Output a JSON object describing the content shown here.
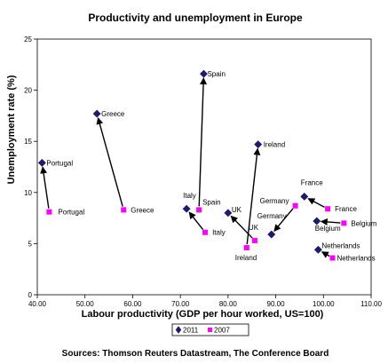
{
  "chart_data": {
    "type": "scatter",
    "title": "Productivity and unemployment in Europe",
    "xlabel": "Labour productivity (GDP per hour worked,  US=100)",
    "ylabel": "Unemployment rate (%)",
    "xlim": [
      40,
      110
    ],
    "ylim": [
      0,
      25
    ],
    "x_ticks": [
      "40.00",
      "50.00",
      "60.00",
      "70.00",
      "80.00",
      "90.00",
      "100.00",
      "110.00"
    ],
    "y_ticks": [
      "0",
      "5",
      "10",
      "15",
      "20",
      "25"
    ],
    "grid": false,
    "legend_position": "bottom",
    "source": "Sources: Thomson Reuters Datastream, The Conference Board",
    "colors": {
      "2011": "#1a1a7a",
      "2007": "#ff00ff",
      "arrow": "#000000"
    },
    "series": [
      {
        "name": "2011",
        "marker": "diamond",
        "points": [
          {
            "country": "Portugal",
            "label": "Portugal",
            "x": 41.0,
            "y": 12.9
          },
          {
            "country": "Greece",
            "label": "Greece",
            "x": 52.5,
            "y": 17.7
          },
          {
            "country": "Spain",
            "label": "Spain",
            "x": 74.9,
            "y": 21.6
          },
          {
            "country": "Italy",
            "label": "Italy",
            "x": 71.3,
            "y": 8.4
          },
          {
            "country": "UK",
            "label": "UK",
            "x": 80.0,
            "y": 8.0
          },
          {
            "country": "Ireland",
            "label": "Ireland",
            "x": 86.3,
            "y": 14.7
          },
          {
            "country": "Germany",
            "label": "Germany",
            "x": 89.1,
            "y": 5.9
          },
          {
            "country": "France",
            "label": "France",
            "x": 96.0,
            "y": 9.6
          },
          {
            "country": "Belgium",
            "label": "Belgium",
            "x": 98.6,
            "y": 7.2
          },
          {
            "country": "Netherlands",
            "label": "Netherlands",
            "x": 98.9,
            "y": 4.4
          }
        ]
      },
      {
        "name": "2007",
        "marker": "square",
        "points": [
          {
            "country": "Portugal",
            "label": "Portugal",
            "x": 42.5,
            "y": 8.1
          },
          {
            "country": "Greece",
            "label": "Greece",
            "x": 58.1,
            "y": 8.3
          },
          {
            "country": "Spain",
            "label": "Spain",
            "x": 73.9,
            "y": 8.3
          },
          {
            "country": "Italy",
            "label": "Italy",
            "x": 75.2,
            "y": 6.1
          },
          {
            "country": "UK",
            "label": "UK",
            "x": 85.6,
            "y": 5.3
          },
          {
            "country": "Ireland",
            "label": "Ireland",
            "x": 83.9,
            "y": 4.6
          },
          {
            "country": "Germany",
            "label": "Germany",
            "x": 94.1,
            "y": 8.7
          },
          {
            "country": "France",
            "label": "France",
            "x": 100.9,
            "y": 8.4
          },
          {
            "country": "Belgium",
            "label": "Belgium",
            "x": 104.3,
            "y": 7.0
          },
          {
            "country": "Netherlands",
            "label": "Netherlands",
            "x": 101.9,
            "y": 3.6
          }
        ]
      }
    ]
  }
}
